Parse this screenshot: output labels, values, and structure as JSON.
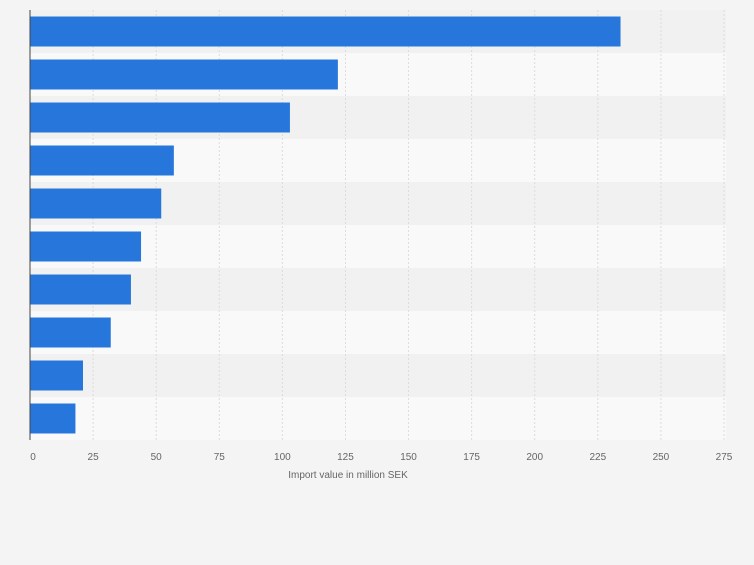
{
  "chart_data": {
    "type": "bar",
    "orientation": "horizontal",
    "categories": [
      "",
      "",
      "",
      "",
      "",
      "",
      "",
      "",
      "",
      ""
    ],
    "values": [
      234,
      122,
      103,
      57,
      52,
      44,
      40,
      32,
      21,
      18
    ],
    "title": "",
    "xlabel": "Import value in million SEK",
    "ylabel": "",
    "xlim": [
      0,
      275
    ],
    "xticks": [
      0,
      25,
      50,
      75,
      100,
      125,
      150,
      175,
      200,
      225,
      250,
      275
    ],
    "xtick_labels": [
      "0",
      "25",
      "50",
      "75",
      "100",
      "125",
      "150",
      "175",
      "200",
      "225",
      "250",
      "275"
    ],
    "grid": true,
    "colors": {
      "bar": "#2776dc",
      "band_light": "#f9f9f9",
      "band_dark": "#f1f1f1",
      "grid": "#dcdcdc",
      "axis": "#444444"
    }
  }
}
